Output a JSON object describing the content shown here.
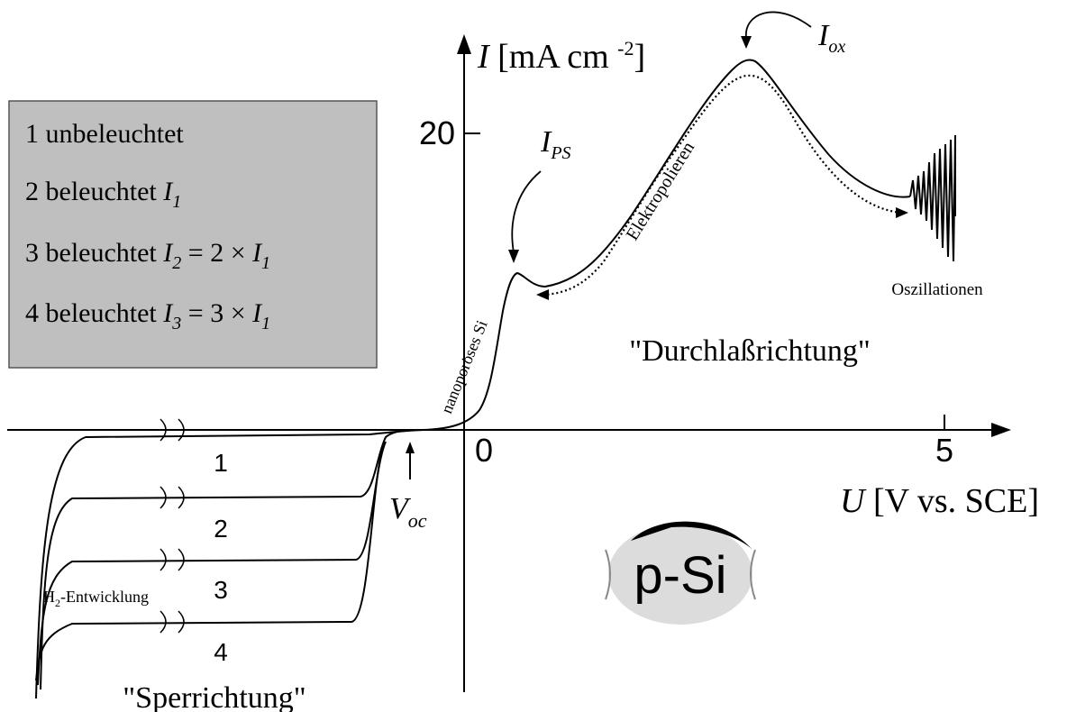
{
  "axes": {
    "y_label": [
      "I",
      " [mA cm ",
      "-2",
      "]"
    ],
    "x_label": [
      "U",
      " [V vs. SCE]"
    ],
    "y_tick": "20",
    "x_ticks": [
      "0",
      "5"
    ]
  },
  "legend": {
    "items": [
      [
        "1 unbeleuchtet"
      ],
      [
        "2 beleuchtet  ",
        "I",
        "1"
      ],
      [
        "3 beleuchtet  ",
        "I",
        "2",
        " = 2 × ",
        "I",
        "1"
      ],
      [
        "4 beleuchtet  ",
        "I",
        "3",
        " = 3 × ",
        "I",
        "1"
      ]
    ]
  },
  "annotations": {
    "i_ps": [
      "I",
      "PS"
    ],
    "i_ox": [
      "I",
      "ox"
    ],
    "v_oc": [
      "V",
      "oc"
    ],
    "electropolishing": "Elektropolieren",
    "nanoporous": "nanoporöses Si",
    "oscillations": "Oszillationen",
    "forward": "\"Durchlaßrichtung\"",
    "reverse": "\"Sperrichtung\"",
    "h2": [
      "H",
      "2",
      "-Entwicklung"
    ]
  },
  "curve_labels": [
    "1",
    "2",
    "3",
    "4"
  ],
  "logo": "p-Si"
}
